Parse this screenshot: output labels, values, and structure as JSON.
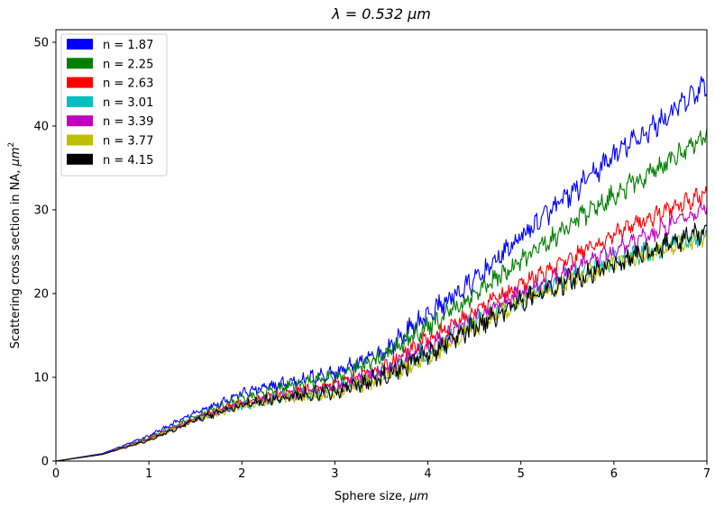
{
  "chart_data": {
    "type": "line",
    "title_prefix": "λ = 0.532 ",
    "title_unit": "μm",
    "xlabel_prefix": "Sphere size, ",
    "xlabel_unit": "μm",
    "ylabel_prefix": "Scattering cross section in NA, ",
    "ylabel_unit": "μm",
    "ylabel_unit_exp": "2",
    "xlim": [
      0,
      7
    ],
    "ylim": [
      0,
      51.5
    ],
    "xticks": [
      "0",
      "1",
      "2",
      "3",
      "4",
      "5",
      "6",
      "7"
    ],
    "yticks": [
      "0",
      "10",
      "20",
      "30",
      "40",
      "50"
    ],
    "grid": false,
    "legend_position": "top-left",
    "x": [
      0,
      0.5,
      1,
      1.5,
      2,
      2.5,
      3,
      3.5,
      4,
      4.5,
      5,
      5.5,
      6,
      6.5,
      7
    ],
    "series": [
      {
        "name": "n = 1.87",
        "color": "#0000ff",
        "noise": 1.3,
        "values": [
          0,
          0.9,
          3.0,
          5.8,
          8.1,
          9.4,
          10.5,
          12.8,
          17.5,
          21.5,
          26.8,
          31.5,
          36.5,
          40.5,
          45.0
        ]
      },
      {
        "name": "n = 2.25",
        "color": "#008000",
        "noise": 1.2,
        "values": [
          0,
          0.8,
          2.8,
          5.3,
          7.5,
          9.0,
          10.0,
          12.3,
          16.0,
          19.8,
          23.8,
          28.0,
          31.8,
          35.0,
          39.0
        ]
      },
      {
        "name": "n = 2.63",
        "color": "#ff0000",
        "noise": 1.0,
        "values": [
          0,
          0.8,
          2.7,
          5.1,
          7.0,
          8.1,
          9.2,
          11.0,
          14.5,
          18.0,
          21.0,
          24.0,
          27.0,
          29.5,
          32.0
        ]
      },
      {
        "name": "n = 3.01",
        "color": "#00bfbf",
        "noise": 1.1,
        "values": [
          0,
          0.8,
          2.6,
          5.0,
          6.6,
          7.8,
          8.5,
          10.5,
          13.0,
          16.5,
          19.5,
          22.0,
          24.0,
          25.5,
          27.0
        ]
      },
      {
        "name": "n = 3.39",
        "color": "#bf00bf",
        "noise": 1.0,
        "values": [
          0,
          0.8,
          2.6,
          5.0,
          6.8,
          7.9,
          8.7,
          10.6,
          13.5,
          17.0,
          20.0,
          22.5,
          25.0,
          27.5,
          30.5
        ]
      },
      {
        "name": "n = 3.77",
        "color": "#bfbf00",
        "noise": 1.0,
        "values": [
          0,
          0.8,
          2.5,
          4.9,
          6.6,
          7.6,
          8.0,
          9.8,
          12.5,
          16.0,
          19.0,
          21.5,
          23.5,
          25.0,
          27.0
        ]
      },
      {
        "name": "n = 4.15",
        "color": "#000000",
        "noise": 1.2,
        "values": [
          0,
          0.8,
          2.5,
          4.9,
          6.7,
          7.7,
          8.3,
          10.0,
          12.8,
          16.0,
          19.0,
          21.5,
          23.5,
          25.5,
          27.5
        ]
      }
    ]
  }
}
